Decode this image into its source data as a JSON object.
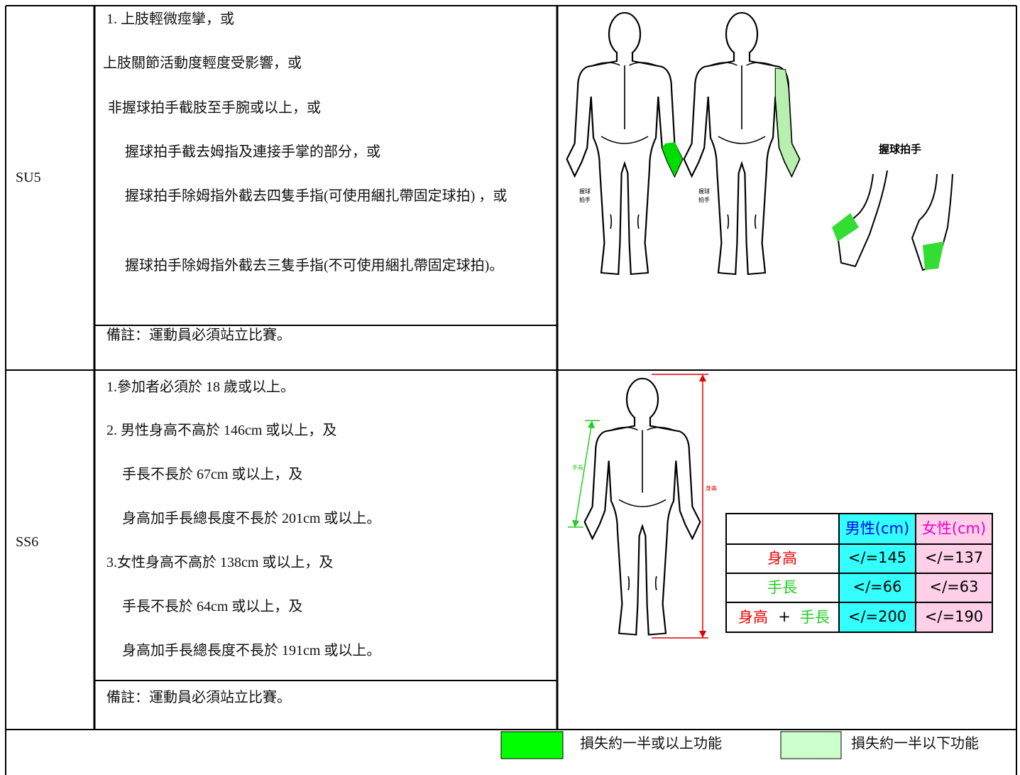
{
  "rows": [
    {
      "code": "SU5",
      "criteria": [
        "1. 上肢輕微痙攣，或",
        "上肢關節活動度輕度受影響，或",
        "非握球拍手截肢至手腕或以上，或",
        "握球拍手截去姆指及連接手掌的部分，或",
        "握球拍手除姆指外截去四隻手指(可使用綑扎帶固定球拍) ，或",
        "握球拍手除姆指外截去三隻手指(不可使用綑扎帶固定球拍)。"
      ],
      "note": "備註：運動員必須站立比賽。",
      "figure": {
        "hand_label": [
          "握球",
          "拍手"
        ],
        "heading": "握球拍手"
      }
    },
    {
      "code": "SS6",
      "criteria": [
        "1.參加者必須於 18 歲或以上。",
        "2. 男性身高不高於 146cm 或以上，及",
        "手長不長於 67cm 或以上，及",
        "身高加手長總長度不長於 201cm 或以上。",
        "3.女性身高不高於 138cm 或以上，及",
        "手長不長於 64cm 或以上，及",
        "身高加手長總長度不長於 191cm 或以上。"
      ],
      "note": "備註：運動員必須站立比賽。",
      "figure": {
        "arm_label": "手長",
        "height_label": "身高",
        "table": {
          "header": [
            "男性(cm)",
            "女性(cm)"
          ],
          "rows": [
            {
              "label": [
                "身高"
              ],
              "male": "</=145",
              "female": "</=137"
            },
            {
              "label": [
                "手長"
              ],
              "male": "</=66",
              "female": "</=63"
            },
            {
              "label": [
                "身高",
                "+",
                "手長"
              ],
              "male": "</=200",
              "female": "</=190"
            }
          ]
        }
      }
    }
  ],
  "legend": [
    {
      "color": "#00ff00",
      "label": "損失約一半或以上功能"
    },
    {
      "color": "#ccffcc",
      "label": "損失約一半以下功能"
    }
  ]
}
